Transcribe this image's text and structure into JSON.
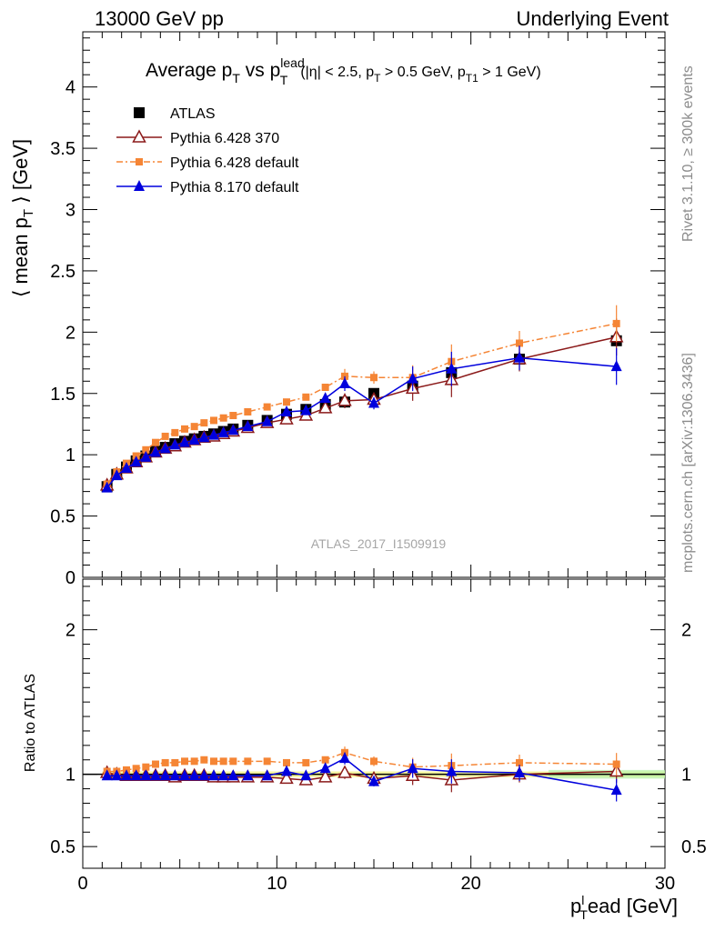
{
  "header": {
    "left": "13000 GeV pp",
    "right": "Underlying Event"
  },
  "side_labels": {
    "events": "Rivet 3.1.10, ≥ 300k events",
    "source": "mcplots.cern.ch [arXiv:1306.3436]"
  },
  "watermark": "ATLAS_2017_I1509919",
  "title": {
    "pre": "Average p",
    "sub1": "T",
    "mid": " vs p",
    "sup2": "lead",
    "sub2": "T",
    "cuts": "(|η| < 2.5, p",
    "cuts_sub1": "T",
    "cuts_mid": " > 0.5 GeV, p",
    "cuts_sub2": "T1",
    "cuts_end": " > 1 GeV)"
  },
  "chart_data": [
    {
      "type": "line",
      "panel": "main",
      "ylabel": "⟨ mean p",
      "ylabel_sub": "T",
      "ylabel_end": " ⟩ [GeV]",
      "xlim": [
        0,
        30
      ],
      "ylim": [
        0,
        4.45
      ],
      "yticks": [
        0,
        0.5,
        1,
        1.5,
        2,
        2.5,
        3,
        3.5,
        4
      ],
      "ytick_labels": [
        "0",
        "0.5",
        "1",
        "1.5",
        "2",
        "2.5",
        "3",
        "3.5",
        "4"
      ],
      "legend_position": "top-left",
      "x": [
        1.25,
        1.75,
        2.25,
        2.75,
        3.25,
        3.75,
        4.25,
        4.75,
        5.25,
        5.75,
        6.25,
        6.75,
        7.25,
        7.75,
        8.5,
        9.5,
        10.5,
        11.5,
        12.5,
        13.5,
        15,
        17,
        19,
        22.5,
        27.5
      ],
      "series": [
        {
          "name": "ATLAS",
          "color": "#000000",
          "marker": "square",
          "line": "none",
          "y": [
            0.74,
            0.84,
            0.9,
            0.95,
            0.99,
            1.03,
            1.06,
            1.09,
            1.11,
            1.13,
            1.15,
            1.17,
            1.19,
            1.21,
            1.24,
            1.28,
            1.33,
            1.37,
            1.41,
            1.43,
            1.5,
            1.56,
            1.67,
            1.78,
            1.93
          ]
        },
        {
          "name": "Pythia 6.428 370",
          "color": "#8b1a1a",
          "marker": "triangle-open",
          "line": "solid",
          "y": [
            0.75,
            0.84,
            0.89,
            0.94,
            0.98,
            1.02,
            1.05,
            1.07,
            1.1,
            1.12,
            1.14,
            1.15,
            1.17,
            1.19,
            1.22,
            1.26,
            1.29,
            1.32,
            1.38,
            1.44,
            1.45,
            1.54,
            1.61,
            1.78,
            1.96
          ]
        },
        {
          "name": "Pythia 6.428 default",
          "color": "#f58535",
          "marker": "square-small",
          "line": "dashdot",
          "y": [
            0.76,
            0.86,
            0.93,
            0.99,
            1.04,
            1.1,
            1.15,
            1.18,
            1.21,
            1.23,
            1.26,
            1.28,
            1.3,
            1.32,
            1.35,
            1.39,
            1.43,
            1.47,
            1.55,
            1.64,
            1.63,
            1.63,
            1.76,
            1.91,
            2.07
          ]
        },
        {
          "name": "Pythia 8.170 default",
          "color": "#0000dd",
          "marker": "triangle",
          "line": "solid",
          "y": [
            0.73,
            0.83,
            0.89,
            0.94,
            0.98,
            1.02,
            1.05,
            1.08,
            1.1,
            1.12,
            1.14,
            1.16,
            1.18,
            1.2,
            1.23,
            1.27,
            1.35,
            1.36,
            1.46,
            1.58,
            1.42,
            1.62,
            1.7,
            1.79,
            1.72
          ]
        }
      ],
      "errors_shown": {
        "27.5": 0.15,
        "22.5": 0.1,
        "19": 0.14,
        "17": 0.1,
        "15": 0.05,
        "13.5": 0.06
      }
    },
    {
      "type": "line",
      "panel": "ratio",
      "ylabel": "Ratio to ATLAS",
      "xlabel": "p",
      "xlabel_sub": "T",
      "xlabel_sup": "l",
      "xlabel_end": "ead [GeV]",
      "xlim": [
        0,
        30
      ],
      "ylim": [
        0.35,
        2.35
      ],
      "xticks": [
        0,
        10,
        20,
        30
      ],
      "xtick_labels": [
        "0",
        "10",
        "20",
        "30"
      ],
      "yticks": [
        0.5,
        1,
        2
      ],
      "ytick_labels": [
        "0.5",
        "1",
        "2"
      ],
      "x": [
        1.25,
        1.75,
        2.25,
        2.75,
        3.25,
        3.75,
        4.25,
        4.75,
        5.25,
        5.75,
        6.25,
        6.75,
        7.25,
        7.75,
        8.5,
        9.5,
        10.5,
        11.5,
        12.5,
        13.5,
        15,
        17,
        19,
        22.5,
        27.5
      ],
      "series": [
        {
          "name": "Pythia 6.428 370",
          "y": [
            1.01,
            1.0,
            0.99,
            0.99,
            0.99,
            0.99,
            0.99,
            0.98,
            0.99,
            0.99,
            0.99,
            0.98,
            0.98,
            0.98,
            0.98,
            0.98,
            0.97,
            0.96,
            0.98,
            1.01,
            0.97,
            0.99,
            0.96,
            1.0,
            1.02
          ]
        },
        {
          "name": "Pythia 6.428 default",
          "y": [
            1.02,
            1.02,
            1.03,
            1.04,
            1.05,
            1.07,
            1.08,
            1.08,
            1.09,
            1.09,
            1.1,
            1.09,
            1.09,
            1.09,
            1.09,
            1.09,
            1.08,
            1.08,
            1.1,
            1.15,
            1.09,
            1.05,
            1.06,
            1.08,
            1.07
          ]
        },
        {
          "name": "Pythia 8.170 default",
          "y": [
            0.99,
            0.99,
            0.99,
            0.99,
            0.99,
            0.99,
            0.99,
            0.99,
            0.99,
            0.99,
            0.99,
            0.99,
            0.99,
            0.99,
            0.99,
            0.99,
            1.02,
            0.99,
            1.04,
            1.11,
            0.95,
            1.04,
            1.02,
            1.01,
            0.89
          ]
        }
      ]
    }
  ]
}
